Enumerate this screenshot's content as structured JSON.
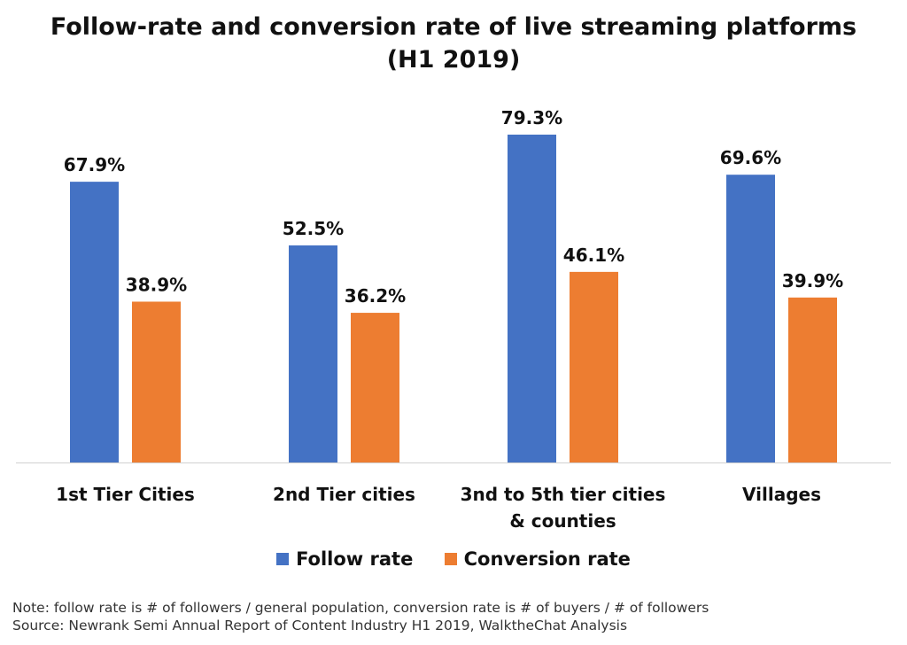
{
  "chart_data": {
    "type": "bar",
    "title": "Follow-rate and conversion rate of live streaming platforms",
    "subtitle": "(H1 2019)",
    "categories": [
      [
        "1st Tier Cities"
      ],
      [
        "2nd Tier cities"
      ],
      [
        "3nd to 5th tier cities",
        "& counties"
      ],
      [
        "Villages"
      ]
    ],
    "series": [
      {
        "name": "Follow rate",
        "color": "#4472C4",
        "values": [
          67.9,
          52.5,
          79.3,
          69.6
        ],
        "labels": [
          "67.9%",
          "52.5%",
          "79.3%",
          "69.6%"
        ]
      },
      {
        "name": "Conversion rate",
        "color": "#ED7D31",
        "values": [
          38.9,
          36.2,
          46.1,
          39.9
        ],
        "labels": [
          "38.9%",
          "36.2%",
          "46.1%",
          "39.9%"
        ]
      }
    ],
    "ylim": [
      0,
      90
    ],
    "xlabel": "",
    "ylabel": "",
    "grid": false,
    "legend_position": "bottom-center"
  },
  "notes": {
    "note": "Note: follow rate is # of followers / general population, conversion rate is # of buyers / # of followers",
    "source": "Source: Newrank Semi Annual Report of Content Industry H1 2019, WalktheChat Analysis"
  }
}
